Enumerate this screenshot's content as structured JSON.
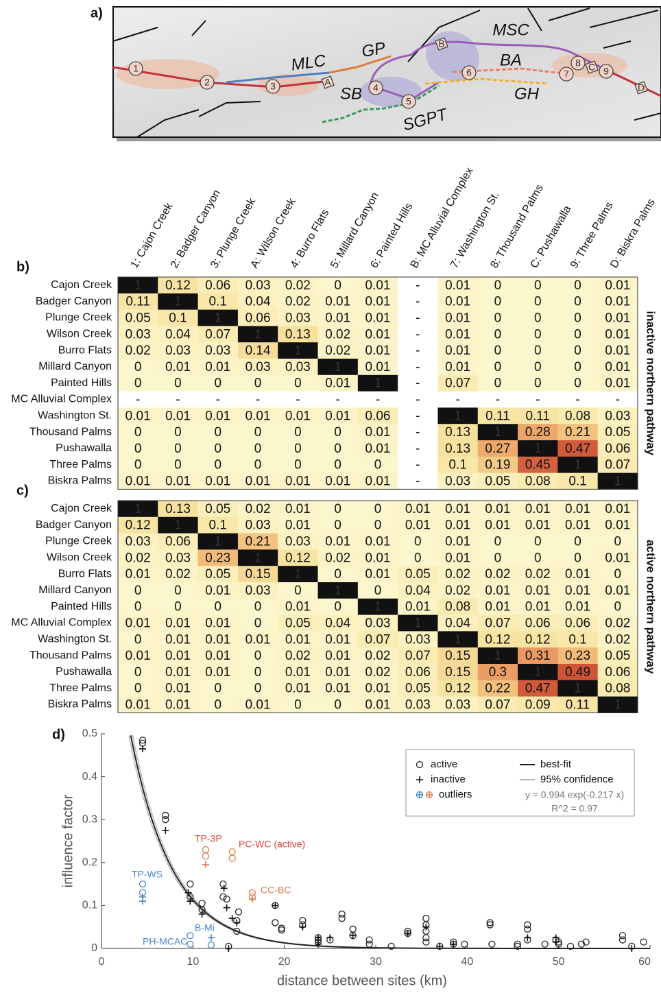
{
  "map": {
    "panel_label": "a)",
    "fault_labels": [
      "MSC",
      "MLC",
      "GP",
      "BA",
      "SB",
      "GH",
      "SGPT"
    ],
    "sites": [
      "1",
      "2",
      "3",
      "A",
      "4",
      "5",
      "B",
      "6",
      "7",
      "8",
      "C",
      "9",
      "D"
    ]
  },
  "chart_data": [
    {
      "type": "heatmap",
      "panel_label": "b)",
      "side_label": "inactive northern pathway",
      "x_categories": [
        "1: Cajon Creek",
        "2: Badger Canyon",
        "3: Plunge Creek",
        "A: Wilson Creek",
        "4: Burro Flats",
        "5: Millard Canyon",
        "6: Painted Hills",
        "B: MC Alluvial Complex",
        "7: Washington St.",
        "8: Thousand Palms",
        "C: Pushawalla",
        "9: Three Palms",
        "D: Biskra Palms"
      ],
      "y_categories": [
        "Cajon Creek",
        "Badger Canyon",
        "Plunge Creek",
        "Wilson Creek",
        "Burro Flats",
        "Millard Canyon",
        "Painted Hills",
        "MC Alluvial Complex",
        "Washington St.",
        "Thousand Palms",
        "Pushawalla",
        "Three Palms",
        "Biskra Palms"
      ],
      "missing_label": "-",
      "colormap": [
        "#fcf6cc",
        "#f8e3a0",
        "#f1b372",
        "#e07d4e",
        "#cc4f35"
      ],
      "vmax": 0.5,
      "over_color": "#111111",
      "values": [
        [
          1,
          0.12,
          0.06,
          0.03,
          0.02,
          0,
          0.01,
          null,
          0.01,
          0,
          0,
          0,
          0.01
        ],
        [
          0.11,
          1,
          0.1,
          0.04,
          0.02,
          0.01,
          0.01,
          null,
          0.01,
          0,
          0,
          0,
          0.01
        ],
        [
          0.05,
          0.1,
          1,
          0.06,
          0.03,
          0.01,
          0.01,
          null,
          0.01,
          0,
          0,
          0,
          0.01
        ],
        [
          0.03,
          0.04,
          0.07,
          1,
          0.13,
          0.02,
          0.01,
          null,
          0.01,
          0,
          0,
          0,
          0.01
        ],
        [
          0.02,
          0.03,
          0.03,
          0.14,
          1,
          0.02,
          0.01,
          null,
          0.01,
          0,
          0,
          0,
          0.01
        ],
        [
          0,
          0.01,
          0.01,
          0.03,
          0.03,
          1,
          0.01,
          null,
          0.01,
          0,
          0,
          0,
          0.01
        ],
        [
          0,
          0,
          0,
          0,
          0,
          0.01,
          1,
          null,
          0.07,
          0,
          0,
          0,
          0.01
        ],
        [
          null,
          null,
          null,
          null,
          null,
          null,
          null,
          null,
          null,
          null,
          null,
          null,
          null
        ],
        [
          0.01,
          0.01,
          0.01,
          0.01,
          0.01,
          0.01,
          0.06,
          null,
          1,
          0.11,
          0.11,
          0.08,
          0.03
        ],
        [
          0,
          0,
          0,
          0,
          0,
          0,
          0.01,
          null,
          0.13,
          1,
          0.28,
          0.21,
          0.05
        ],
        [
          0,
          0,
          0,
          0,
          0,
          0,
          0.01,
          null,
          0.13,
          0.27,
          1,
          0.47,
          0.06
        ],
        [
          0,
          0,
          0,
          0,
          0,
          0,
          0,
          null,
          0.1,
          0.19,
          0.45,
          1,
          0.07
        ],
        [
          0.01,
          0.01,
          0.01,
          0.01,
          0.01,
          0.01,
          0.01,
          null,
          0.03,
          0.05,
          0.08,
          0.1,
          1
        ]
      ]
    },
    {
      "type": "heatmap",
      "panel_label": "c)",
      "side_label": "active northern pathway",
      "y_categories": [
        "Cajon Creek",
        "Badger Canyon",
        "Plunge Creek",
        "Wilson Creek",
        "Burro Flats",
        "Millard Canyon",
        "Painted Hills",
        "MC Alluvial Complex",
        "Washington St.",
        "Thousand Palms",
        "Pushawalla",
        "Three Palms",
        "Biskra Palms"
      ],
      "colormap": [
        "#fcf6cc",
        "#f8e3a0",
        "#f1b372",
        "#e07d4e",
        "#cc4f35"
      ],
      "vmax": 0.5,
      "over_color": "#111111",
      "values": [
        [
          1,
          0.13,
          0.05,
          0.02,
          0.01,
          0,
          0,
          0.01,
          0.01,
          0.01,
          0.01,
          0.01,
          0.01
        ],
        [
          0.12,
          1,
          0.1,
          0.03,
          0.01,
          0,
          0,
          0.01,
          0.01,
          0.01,
          0.01,
          0.01,
          0.01
        ],
        [
          0.03,
          0.06,
          1,
          0.21,
          0.03,
          0.01,
          0.01,
          0,
          0.01,
          0,
          0,
          0,
          0
        ],
        [
          0.02,
          0.03,
          0.23,
          1,
          0.12,
          0.02,
          0.01,
          0,
          0.01,
          0,
          0,
          0,
          0.01
        ],
        [
          0.01,
          0.02,
          0.05,
          0.15,
          1,
          0,
          0.01,
          0.05,
          0.02,
          0.02,
          0.02,
          0.01,
          0
        ],
        [
          0,
          0,
          0.01,
          0.03,
          0,
          1,
          0,
          0.04,
          0.02,
          0.01,
          0.01,
          0.01,
          0.01
        ],
        [
          0,
          0,
          0,
          0,
          0.01,
          0,
          1,
          0.01,
          0.08,
          0.01,
          0.01,
          0.01,
          0
        ],
        [
          0.01,
          0.01,
          0.01,
          0,
          0.05,
          0.04,
          0.03,
          1,
          0.04,
          0.07,
          0.06,
          0.06,
          0.02
        ],
        [
          0,
          0.01,
          0.01,
          0.01,
          0.01,
          0.01,
          0.07,
          0.03,
          1,
          0.12,
          0.12,
          0.1,
          0.02
        ],
        [
          0.01,
          0.01,
          0.01,
          0,
          0.02,
          0.01,
          0.02,
          0.07,
          0.15,
          1,
          0.31,
          0.23,
          0.05
        ],
        [
          0,
          0.01,
          0.01,
          0,
          0.01,
          0.01,
          0.02,
          0.06,
          0.15,
          0.3,
          1,
          0.49,
          0.06
        ],
        [
          0,
          0.01,
          0,
          0,
          0.01,
          0.01,
          0.01,
          0.05,
          0.12,
          0.22,
          0.47,
          1,
          0.08
        ],
        [
          0.01,
          0.01,
          0,
          0.01,
          0,
          0,
          0.01,
          0.03,
          0.03,
          0.07,
          0.09,
          0.11,
          1
        ]
      ]
    },
    {
      "type": "scatter",
      "panel_label": "d)",
      "xlabel": "distance between sites (km)",
      "ylabel": "influence factor",
      "xlim": [
        0,
        60
      ],
      "ylim": [
        0,
        0.5
      ],
      "xticks": [
        0,
        10,
        20,
        30,
        40,
        50,
        60
      ],
      "yticks": [
        0,
        0.1,
        0.2,
        0.3,
        0.4,
        0.5
      ],
      "legend": "upper right",
      "series": [
        {
          "name": "active",
          "marker": "circle",
          "color": "#222222",
          "x": [
            4.5,
            4.5,
            7,
            7,
            9.7,
            9.7,
            11,
            11,
            13.3,
            13.3,
            13.7,
            15,
            14.8,
            14.8,
            13.9,
            19,
            19,
            19.7,
            19.7,
            22,
            22,
            23.7,
            23.7,
            23.7,
            25,
            26.3,
            26.3,
            27.5,
            27.5,
            29.3,
            29.3,
            31.7,
            33.5,
            33.5,
            35.5,
            35.5,
            35.5,
            35.5,
            35.5,
            37,
            38.5,
            38.5,
            39.7,
            42.5,
            42.5,
            42.7,
            45.5,
            45.5,
            46.6,
            46.6,
            46.6,
            48.5,
            49.7,
            50,
            50,
            51.3,
            52.5,
            53,
            57,
            57,
            58,
            59.3
          ],
          "values": [
            0.485,
            0.478,
            0.31,
            0.3,
            0.15,
            0.12,
            0.105,
            0.09,
            0.15,
            0.12,
            0.115,
            0.085,
            0.065,
            0.04,
            0.005,
            0.1,
            0.06,
            0.047,
            0.043,
            0.065,
            0.055,
            0.025,
            0.02,
            0.015,
            0.02,
            0.08,
            0.07,
            0.045,
            0.03,
            0.02,
            0.01,
            0.005,
            0.04,
            0.035,
            0.07,
            0.055,
            0.04,
            0.025,
            0.015,
            0.005,
            0.015,
            0.01,
            0.01,
            0.06,
            0.055,
            0.01,
            0.01,
            0.005,
            0.055,
            0.045,
            0.02,
            0.01,
            0.02,
            0.015,
            0.01,
            0.005,
            0.01,
            0.015,
            0.03,
            0.02,
            0.005,
            0.015
          ]
        },
        {
          "name": "inactive",
          "marker": "plus",
          "color": "#111111",
          "x": [
            4.5,
            7,
            9.5,
            9.7,
            11,
            13.4,
            13.7,
            14.3,
            14.8,
            13.9,
            19,
            22,
            23.7,
            23.7,
            25,
            27.5,
            33.5,
            35.5,
            37,
            38.5,
            46.6,
            49.7,
            49.7,
            58
          ],
          "values": [
            0.465,
            0.275,
            0.13,
            0.11,
            0.08,
            0.14,
            0.095,
            0.07,
            0.06,
            0,
            0.1,
            0.05,
            0.025,
            0.01,
            0.025,
            0.03,
            0.035,
            0.05,
            0.005,
            0.01,
            0.025,
            0.025,
            0.015,
            0
          ]
        }
      ],
      "outliers": {
        "name": "outliers",
        "groups": [
          {
            "marker": "circle",
            "color": "#4a85c6",
            "x": [
              4.5,
              4.5,
              9.7,
              9.7,
              12
            ],
            "values": [
              0.15,
              0.13,
              0.03,
              0.01,
              0.008
            ]
          },
          {
            "marker": "plus",
            "color": "#4a85c6",
            "x": [
              4.5,
              4.5,
              12
            ],
            "values": [
              0.12,
              0.11,
              0.025
            ]
          },
          {
            "marker": "circle",
            "color": "#e07a4a",
            "x": [
              11.4,
              11.4,
              14.3,
              14.3,
              16.5,
              16.5
            ],
            "values": [
              0.23,
              0.215,
              0.225,
              0.21,
              0.13,
              0.12
            ]
          },
          {
            "marker": "plus",
            "color": "#e07a4a",
            "x": [
              11.4,
              16.5
            ],
            "values": [
              0.195,
              0.115
            ]
          }
        ]
      },
      "fit": {
        "name": "best-fit",
        "color": "#222222",
        "a": 0.994,
        "b": -0.217,
        "equation": "y = 0.994 exp(-0.217 x)",
        "r2_label": "R^2 = 0.97"
      },
      "confidence": {
        "name": "95% confidence",
        "color": "#b8b8b8",
        "curves": [
          {
            "a": 1.04,
            "b": -0.217
          },
          {
            "a": 0.95,
            "b": -0.217
          }
        ]
      },
      "annotations": [
        {
          "text": "TP-3P",
          "color": "#d9473a"
        },
        {
          "text": "PC-WC (active)",
          "color": "#d9473a"
        },
        {
          "text": "TP-WS",
          "color": "#4a85c6"
        },
        {
          "text": "CC-BC",
          "color": "#e07a4a"
        },
        {
          "text": "B-Mi",
          "color": "#4a85c6"
        },
        {
          "text": "PH-MCAC",
          "color": "#4a85c6"
        }
      ]
    }
  ]
}
